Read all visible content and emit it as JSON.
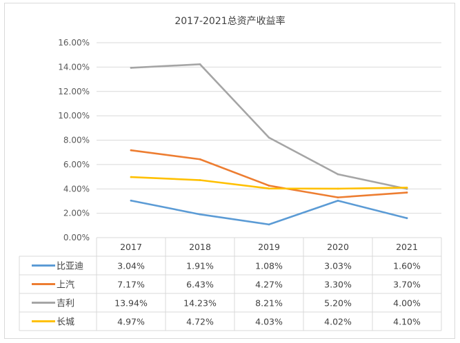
{
  "chart_data": {
    "type": "line",
    "title": "2017-2021总资产收益率",
    "categories": [
      "2017",
      "2018",
      "2019",
      "2020",
      "2021"
    ],
    "ylim": [
      0,
      16
    ],
    "y_ticks": [
      "0.00%",
      "2.00%",
      "4.00%",
      "6.00%",
      "8.00%",
      "10.00%",
      "12.00%",
      "14.00%",
      "16.00%"
    ],
    "grid": true,
    "legend": "data-table-below",
    "series": [
      {
        "name": "比亚迪",
        "color": "#5b9bd5",
        "values": [
          3.04,
          1.91,
          1.08,
          3.03,
          1.6
        ],
        "labels": [
          "3.04%",
          "1.91%",
          "1.08%",
          "3.03%",
          "1.60%"
        ]
      },
      {
        "name": "上汽",
        "color": "#ed7d31",
        "values": [
          7.17,
          6.43,
          4.27,
          3.3,
          3.7
        ],
        "labels": [
          "7.17%",
          "6.43%",
          "4.27%",
          "3.30%",
          "3.70%"
        ]
      },
      {
        "name": "吉利",
        "color": "#a5a5a5",
        "values": [
          13.94,
          14.23,
          8.21,
          5.2,
          4.0
        ],
        "labels": [
          "13.94%",
          "14.23%",
          "8.21%",
          "5.20%",
          "4.00%"
        ]
      },
      {
        "name": "长城",
        "color": "#ffc000",
        "values": [
          4.97,
          4.72,
          4.03,
          4.02,
          4.1
        ],
        "labels": [
          "4.97%",
          "4.72%",
          "4.03%",
          "4.02%",
          "4.10%"
        ]
      }
    ]
  }
}
